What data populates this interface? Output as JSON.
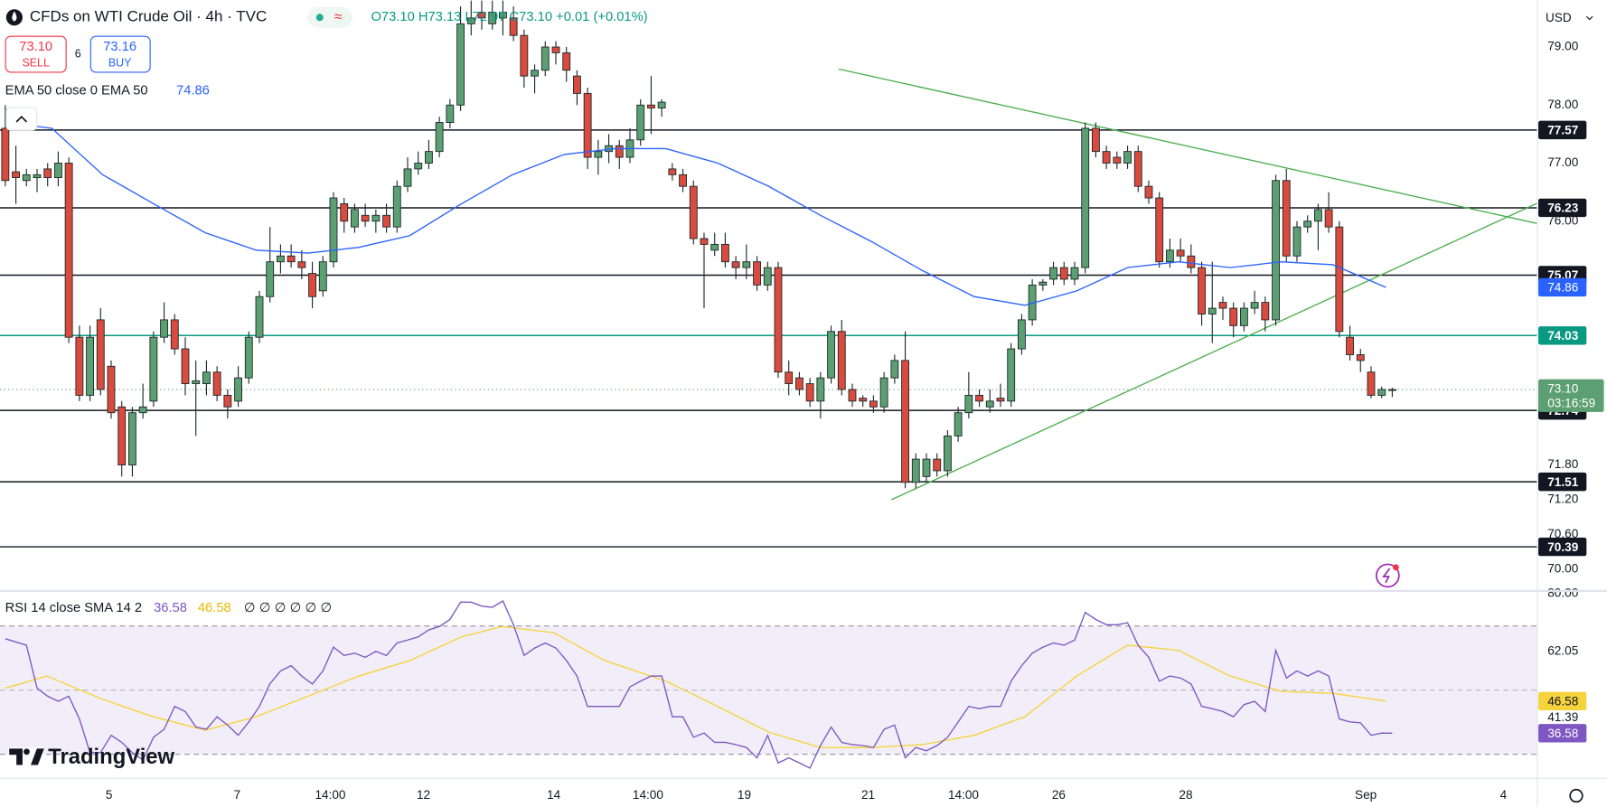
{
  "header": {
    "title": "CFDs on WTI Crude Oil · 4h · TVC",
    "ohlc": "O73.10 H73.13 L72.97 C73.10 +0.01 (+0.01%)",
    "sell_price": "73.10",
    "sell": "SELL",
    "spread": "6",
    "buy_price": "73.16",
    "buy": "BUY",
    "currency": "USD",
    "logo": "TradingView"
  },
  "chart_data": [
    {
      "type": "candlestick",
      "legend": "EMA 50 close 0 EMA 50",
      "up_color": "#5c9f73",
      "down_color": "#d94a3f",
      "ema_color": "#2962ff",
      "trend_color": "#4caf50",
      "xlim": [
        -0.5,
        144.7
      ],
      "ylim": [
        69.63,
        79.81
      ],
      "yticks": [
        {
          "value": 79,
          "label": "79.00"
        },
        {
          "value": 78,
          "label": "78.00"
        },
        {
          "value": 77,
          "label": "77.00"
        },
        {
          "value": 76,
          "label": "76.00"
        },
        {
          "value": 71.8,
          "label": "71.80"
        },
        {
          "value": 71.2,
          "label": "71.20"
        },
        {
          "value": 70.6,
          "label": "70.60"
        },
        {
          "value": 70,
          "label": "70.00"
        }
      ],
      "xlabels": [
        {
          "value": 9.8,
          "label": "5"
        },
        {
          "value": 21.9,
          "label": "7"
        },
        {
          "value": 30.7,
          "label": "14:00"
        },
        {
          "value": 39.5,
          "label": "12"
        },
        {
          "value": 51.8,
          "label": "14"
        },
        {
          "value": 60.7,
          "label": "14:00"
        },
        {
          "value": 69.8,
          "label": "19"
        },
        {
          "value": 81.5,
          "label": "21"
        },
        {
          "value": 90.5,
          "label": "14:00"
        },
        {
          "value": 99.5,
          "label": "26"
        },
        {
          "value": 111.5,
          "label": "28"
        },
        {
          "value": 128.5,
          "label": "Sep"
        },
        {
          "value": 141.5,
          "label": "4"
        }
      ],
      "levels": [
        77.57,
        76.23,
        75.07,
        74.03,
        72.74,
        71.51,
        70.39
      ],
      "level_colors": [
        "#131722",
        "#131722",
        "#131722",
        "#089981",
        "#131722",
        "#131722",
        "#131722"
      ],
      "current_price": {
        "value": 73.1,
        "label": "73.10"
      },
      "countdown": "03:16:59",
      "trendlines": [
        {
          "x": [
            78.7,
            144.7
          ],
          "values": [
            78.62,
            75.96
          ]
        },
        {
          "x": [
            83.7,
            144.7
          ],
          "values": [
            71.2,
            76.31
          ]
        }
      ],
      "ema": {
        "x": [
          0,
          4.4,
          9.2,
          14,
          18.9,
          23.7,
          28.6,
          33.4,
          38.2,
          43.1,
          47.9,
          52.8,
          57.6,
          62.4,
          67.3,
          72.1,
          77,
          81.8,
          86.6,
          91.5,
          96.3,
          101.2,
          106,
          110.8,
          115.7,
          120.5,
          125.4,
          130.4
        ],
        "values": [
          77.7,
          77.6,
          76.8,
          76.3,
          75.8,
          75.5,
          75.45,
          75.55,
          75.75,
          76.3,
          76.8,
          77.15,
          77.25,
          77.25,
          77,
          76.6,
          76.1,
          75.65,
          75.15,
          74.7,
          74.55,
          74.8,
          75.2,
          75.3,
          75.2,
          75.3,
          75.25,
          74.86
        ]
      },
      "candles": [
        [
          77.6,
          78.0,
          76.6,
          76.7
        ],
        [
          76.85,
          77.3,
          76.3,
          76.75
        ],
        [
          76.7,
          76.9,
          76.6,
          76.8
        ],
        [
          76.75,
          76.9,
          76.5,
          76.8
        ],
        [
          76.9,
          77.0,
          76.6,
          76.75
        ],
        [
          76.75,
          77.2,
          76.6,
          77.0
        ],
        [
          77.0,
          77.1,
          73.9,
          74.0
        ],
        [
          74.0,
          74.2,
          72.9,
          73.0
        ],
        [
          73.0,
          74.2,
          72.9,
          74.0
        ],
        [
          74.3,
          74.5,
          73.0,
          73.1
        ],
        [
          73.5,
          73.6,
          72.6,
          72.7
        ],
        [
          72.8,
          72.9,
          71.6,
          71.8
        ],
        [
          71.8,
          72.8,
          71.6,
          72.7
        ],
        [
          72.7,
          73.2,
          72.6,
          72.8
        ],
        [
          72.9,
          74.1,
          72.8,
          74.0
        ],
        [
          74.0,
          74.6,
          73.9,
          74.3
        ],
        [
          74.3,
          74.4,
          73.7,
          73.8
        ],
        [
          73.8,
          74.0,
          73.0,
          73.2
        ],
        [
          73.2,
          73.6,
          72.3,
          73.25
        ],
        [
          73.2,
          73.6,
          73.0,
          73.4
        ],
        [
          73.4,
          73.5,
          72.9,
          73.0
        ],
        [
          73.0,
          73.1,
          72.6,
          72.8
        ],
        [
          72.9,
          73.5,
          72.8,
          73.3
        ],
        [
          73.3,
          74.1,
          73.2,
          74.0
        ],
        [
          74.0,
          74.8,
          73.9,
          74.7
        ],
        [
          74.7,
          75.9,
          74.6,
          75.3
        ],
        [
          75.3,
          75.6,
          75.1,
          75.4
        ],
        [
          75.4,
          75.6,
          75.2,
          75.3
        ],
        [
          75.3,
          75.5,
          75.0,
          75.2
        ],
        [
          75.1,
          75.3,
          74.5,
          74.7
        ],
        [
          74.8,
          75.4,
          74.7,
          75.3
        ],
        [
          75.3,
          76.5,
          75.2,
          76.4
        ],
        [
          76.3,
          76.4,
          75.8,
          76.0
        ],
        [
          75.9,
          76.3,
          75.8,
          76.2
        ],
        [
          76.1,
          76.3,
          75.9,
          76.0
        ],
        [
          76.0,
          76.2,
          75.8,
          76.1
        ],
        [
          76.1,
          76.3,
          75.8,
          75.9
        ],
        [
          75.9,
          76.7,
          75.8,
          76.6
        ],
        [
          76.6,
          77.1,
          76.5,
          76.9
        ],
        [
          76.9,
          77.2,
          76.8,
          77.0
        ],
        [
          77.0,
          77.4,
          76.9,
          77.2
        ],
        [
          77.2,
          77.8,
          77.1,
          77.7
        ],
        [
          77.7,
          78.1,
          77.6,
          78.0
        ],
        [
          78.0,
          79.7,
          77.9,
          79.4
        ],
        [
          79.4,
          79.8,
          79.2,
          79.5
        ],
        [
          79.6,
          79.8,
          79.3,
          79.5
        ],
        [
          79.4,
          79.8,
          79.3,
          79.6
        ],
        [
          79.5,
          79.8,
          79.2,
          79.6
        ],
        [
          79.5,
          79.7,
          79.1,
          79.2
        ],
        [
          79.2,
          79.3,
          78.3,
          78.5
        ],
        [
          78.5,
          78.7,
          78.2,
          78.6
        ],
        [
          78.6,
          79.1,
          78.5,
          79.0
        ],
        [
          79.0,
          79.1,
          78.7,
          78.9
        ],
        [
          78.9,
          79.0,
          78.4,
          78.6
        ],
        [
          78.5,
          78.6,
          78.0,
          78.2
        ],
        [
          78.2,
          78.3,
          76.9,
          77.1
        ],
        [
          77.1,
          77.4,
          76.8,
          77.2
        ],
        [
          77.2,
          77.5,
          77.0,
          77.3
        ],
        [
          77.3,
          77.4,
          76.9,
          77.1
        ],
        [
          77.1,
          77.6,
          77.0,
          77.4
        ],
        [
          77.4,
          78.1,
          77.3,
          78.0
        ],
        [
          78.0,
          78.5,
          77.5,
          77.95
        ],
        [
          77.95,
          78.1,
          77.8,
          78.05
        ],
        [
          76.9,
          77.0,
          76.7,
          76.8
        ],
        [
          76.8,
          76.9,
          76.5,
          76.6
        ],
        [
          76.6,
          76.7,
          75.6,
          75.7
        ],
        [
          75.7,
          75.8,
          74.5,
          75.6
        ],
        [
          75.5,
          75.8,
          75.4,
          75.6
        ],
        [
          75.6,
          75.8,
          75.2,
          75.3
        ],
        [
          75.3,
          75.4,
          75.0,
          75.2
        ],
        [
          75.2,
          75.6,
          75.0,
          75.3
        ],
        [
          75.3,
          75.4,
          74.8,
          74.9
        ],
        [
          74.9,
          75.3,
          74.8,
          75.2
        ],
        [
          75.2,
          75.3,
          73.3,
          73.4
        ],
        [
          73.4,
          73.6,
          73.0,
          73.2
        ],
        [
          73.3,
          73.4,
          73.0,
          73.1
        ],
        [
          73.2,
          73.3,
          72.8,
          72.9
        ],
        [
          72.9,
          73.4,
          72.6,
          73.3
        ],
        [
          73.3,
          74.2,
          73.2,
          74.1
        ],
        [
          74.1,
          74.3,
          73.0,
          73.1
        ],
        [
          73.1,
          73.2,
          72.8,
          72.9
        ],
        [
          72.95,
          73.0,
          72.8,
          72.9
        ],
        [
          72.9,
          73.0,
          72.7,
          72.8
        ],
        [
          72.8,
          73.4,
          72.7,
          73.3
        ],
        [
          73.3,
          73.7,
          73.2,
          73.6
        ],
        [
          73.6,
          74.1,
          71.4,
          71.5
        ],
        [
          71.5,
          72.0,
          71.4,
          71.9
        ],
        [
          71.6,
          72.0,
          71.5,
          71.9
        ],
        [
          71.9,
          72.0,
          71.6,
          71.7
        ],
        [
          71.7,
          72.4,
          71.6,
          72.3
        ],
        [
          72.3,
          72.8,
          72.2,
          72.7
        ],
        [
          72.7,
          73.4,
          72.6,
          73.0
        ],
        [
          73.0,
          73.1,
          72.8,
          72.9
        ],
        [
          72.8,
          73.1,
          72.7,
          72.9
        ],
        [
          72.95,
          73.2,
          72.8,
          72.9
        ],
        [
          72.9,
          73.9,
          72.8,
          73.8
        ],
        [
          73.8,
          74.4,
          73.7,
          74.3
        ],
        [
          74.3,
          75.0,
          74.2,
          74.9
        ],
        [
          74.9,
          75.0,
          74.8,
          74.95
        ],
        [
          75.0,
          75.3,
          74.9,
          75.2
        ],
        [
          75.2,
          75.3,
          74.9,
          75.0
        ],
        [
          75.0,
          75.3,
          74.9,
          75.2
        ],
        [
          75.2,
          77.7,
          75.1,
          77.6
        ],
        [
          77.6,
          77.7,
          77.1,
          77.2
        ],
        [
          77.2,
          77.3,
          76.9,
          77.0
        ],
        [
          77.1,
          77.2,
          76.9,
          77.0
        ],
        [
          77.0,
          77.3,
          76.9,
          77.2
        ],
        [
          77.2,
          77.3,
          76.5,
          76.6
        ],
        [
          76.6,
          76.7,
          76.3,
          76.4
        ],
        [
          76.4,
          76.5,
          75.2,
          75.3
        ],
        [
          75.3,
          75.7,
          75.2,
          75.5
        ],
        [
          75.5,
          75.7,
          75.3,
          75.4
        ],
        [
          75.4,
          75.6,
          75.1,
          75.2
        ],
        [
          75.2,
          75.3,
          74.2,
          74.4
        ],
        [
          74.4,
          75.3,
          73.9,
          74.5
        ],
        [
          74.6,
          74.7,
          74.3,
          74.5
        ],
        [
          74.5,
          74.6,
          74.0,
          74.2
        ],
        [
          74.2,
          74.6,
          74.1,
          74.5
        ],
        [
          74.5,
          74.8,
          74.4,
          74.6
        ],
        [
          74.6,
          74.7,
          74.1,
          74.3
        ],
        [
          74.3,
          76.8,
          74.2,
          76.7
        ],
        [
          76.7,
          76.9,
          75.3,
          75.4
        ],
        [
          75.4,
          76.0,
          75.3,
          75.9
        ],
        [
          75.9,
          76.1,
          75.8,
          76.0
        ],
        [
          76.0,
          76.3,
          75.5,
          76.2
        ],
        [
          76.2,
          76.5,
          75.8,
          75.9
        ],
        [
          75.9,
          76.0,
          74.0,
          74.1
        ],
        [
          74.0,
          74.2,
          73.6,
          73.7
        ],
        [
          73.7,
          73.8,
          73.4,
          73.6
        ],
        [
          73.4,
          73.5,
          72.95,
          73.0
        ],
        [
          73.0,
          73.15,
          72.95,
          73.1
        ],
        [
          73.1,
          73.13,
          72.97,
          73.1
        ]
      ]
    },
    {
      "type": "line",
      "legend": "RSI 14 close SMA 14 2",
      "empty_values": "∅ ∅ ∅ ∅ ∅ ∅",
      "color": "#7e57c2",
      "sma_color": "#f5d33b",
      "band_color": "#7e57c2",
      "xlim": [
        -0.5,
        144.7
      ],
      "ylim": [
        22.5,
        80.6
      ],
      "yticks": [
        {
          "value": 80,
          "label": "80.00"
        },
        62.05,
        41.39
      ],
      "bands": [
        70,
        50,
        30
      ],
      "values": [
        66.0,
        65.0,
        64.0,
        50.6,
        48.1,
        46.5,
        48.1,
        41.0,
        30.5,
        30.5,
        35.9,
        33.7,
        30.5,
        28.2,
        35.3,
        37.8,
        44.9,
        43.3,
        38.5,
        37.8,
        41.7,
        39.1,
        35.9,
        40.1,
        44.9,
        52.0,
        56.0,
        57.6,
        54.4,
        51.9,
        56.0,
        63.4,
        60.8,
        61.5,
        60.2,
        62.1,
        60.8,
        64.7,
        65.6,
        66.6,
        68.8,
        69.8,
        72.0,
        77.4,
        77.4,
        76.2,
        75.8,
        77.8,
        70.4,
        60.8,
        63.1,
        64.7,
        63.1,
        59.2,
        54.4,
        44.9,
        44.9,
        44.9,
        44.9,
        51.0,
        52.8,
        54.4,
        54.4,
        41.7,
        41.7,
        35.3,
        36.6,
        33.7,
        33.7,
        33.0,
        32.1,
        28.9,
        35.9,
        27.3,
        28.9,
        27.3,
        25.7,
        32.7,
        38.5,
        33.7,
        33.0,
        32.7,
        32.1,
        37.8,
        39.1,
        28.9,
        32.1,
        31.1,
        32.7,
        35.3,
        40.1,
        44.9,
        44.2,
        44.9,
        44.9,
        52.8,
        57.6,
        61.5,
        63.4,
        64.7,
        64.0,
        65.6,
        74.2,
        72.0,
        70.4,
        70.4,
        71.0,
        64.0,
        60.2,
        52.8,
        54.4,
        53.8,
        51.9,
        44.9,
        44.2,
        43.3,
        41.7,
        45.5,
        46.5,
        43.3,
        62.4,
        53.8,
        56.0,
        54.4,
        56.0,
        54.4,
        41.0,
        40.1,
        39.8,
        35.9,
        36.6,
        36.58
      ],
      "sma": {
        "x": [
          0,
          3.9,
          9.2,
          14,
          18.9,
          23.7,
          28.6,
          33.4,
          38.2,
          43.1,
          46.9,
          51.8,
          56.6,
          62.4,
          67.3,
          72.1,
          77,
          81.8,
          86.6,
          91.5,
          96.3,
          101.2,
          106,
          110.8,
          115.7,
          120.5,
          125.4,
          130.4
        ],
        "values": [
          50.6,
          54.4,
          47.1,
          41.7,
          37.5,
          41.7,
          48.1,
          54.4,
          59.2,
          66.6,
          69.8,
          67.9,
          59.2,
          52.8,
          44.9,
          36.9,
          32.1,
          32.1,
          33.0,
          35.9,
          41.7,
          54.4,
          64.0,
          62.4,
          54.4,
          49.6,
          49.0,
          46.58
        ]
      }
    }
  ]
}
